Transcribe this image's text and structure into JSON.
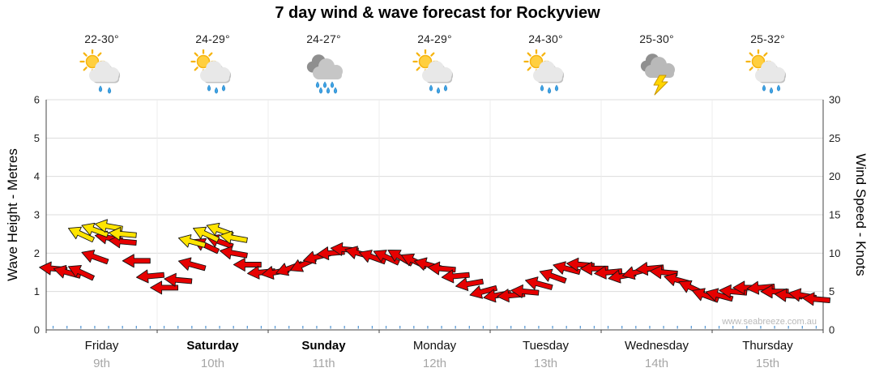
{
  "title": "7 day wind & wave forecast for Rockyview",
  "watermark": "www.seabreeze.com.au",
  "days": [
    {
      "name": "Friday",
      "date": "9th",
      "temp": "22-30°",
      "icon": "sun-shower",
      "drops": 2,
      "bold": false
    },
    {
      "name": "Saturday",
      "date": "10th",
      "temp": "24-29°",
      "icon": "sun-shower",
      "drops": 3,
      "bold": true
    },
    {
      "name": "Sunday",
      "date": "11th",
      "temp": "24-27°",
      "icon": "rain",
      "drops": 6,
      "bold": true
    },
    {
      "name": "Monday",
      "date": "12th",
      "temp": "24-29°",
      "icon": "sun-shower",
      "drops": 3,
      "bold": false
    },
    {
      "name": "Tuesday",
      "date": "13th",
      "temp": "24-30°",
      "icon": "sun-shower",
      "drops": 3,
      "bold": false
    },
    {
      "name": "Wednesday",
      "date": "14th",
      "temp": "25-30°",
      "icon": "storm",
      "drops": 0,
      "bold": false
    },
    {
      "name": "Thursday",
      "date": "15th",
      "temp": "25-32°",
      "icon": "sun-shower",
      "drops": 3,
      "bold": false
    }
  ],
  "axes": {
    "left_label": "Wave Height - Metres",
    "left_ticks": [
      0,
      1,
      2,
      3,
      4,
      5,
      6
    ],
    "right_label": "Wind Speed - Knots",
    "right_ticks": [
      0,
      5,
      10,
      15,
      20,
      25,
      30
    ]
  },
  "chart_data": {
    "type": "line",
    "subtype": "wind-direction-arrow-series",
    "title": "7 day wind & wave forecast for Rockyview",
    "x": {
      "days": [
        "Friday 9th",
        "Saturday 10th",
        "Sunday 11th",
        "Monday 12th",
        "Tuesday 13th",
        "Wednesday 14th",
        "Thursday 15th"
      ],
      "points_per_day": 8
    },
    "y_left": {
      "label": "Wave Height - Metres",
      "range": [
        0,
        6
      ]
    },
    "y_right": {
      "label": "Wind Speed - Knots",
      "range": [
        0,
        30
      ]
    },
    "grid": true,
    "series": [
      {
        "name": "Wind speed (knots)",
        "color": "#e60000",
        "values": [
          8,
          7.5,
          7.5,
          9.5,
          12,
          11.5,
          9,
          7,
          5.5,
          6.5,
          8.5,
          11,
          11.5,
          10,
          8.5,
          7.5,
          7.5,
          8,
          8.5,
          9.5,
          10,
          10.5,
          10,
          9.5,
          9.5,
          9.5,
          9,
          8.5,
          8,
          7,
          6,
          5,
          4.5,
          4.5,
          5,
          6,
          7,
          8,
          8.5,
          8,
          7.5,
          7,
          7.5,
          8,
          7.5,
          6.5,
          5.5,
          4.5,
          4.5,
          5,
          5.5,
          5.5,
          5,
          4.5,
          4.5,
          4
        ]
      }
    ],
    "directions_deg": [
      185,
      195,
      205,
      200,
      190,
      185,
      180,
      175,
      180,
      185,
      195,
      205,
      200,
      190,
      180,
      175,
      170,
      160,
      155,
      165,
      175,
      185,
      195,
      200,
      205,
      210,
      205,
      195,
      185,
      175,
      170,
      165,
      170,
      175,
      185,
      195,
      200,
      195,
      185,
      180,
      175,
      170,
      165,
      175,
      185,
      195,
      205,
      200,
      195,
      185,
      180,
      175,
      180,
      185,
      190,
      185
    ],
    "gusts": {
      "name": "Stronger gusts (knots)",
      "color": "#ffe400",
      "points": [
        {
          "index": 2,
          "knots": 12.5
        },
        {
          "index": 3,
          "knots": 13
        },
        {
          "index": 4,
          "knots": 13.5
        },
        {
          "index": 5,
          "knots": 12.5
        },
        {
          "index": 10,
          "knots": 11.5
        },
        {
          "index": 11,
          "knots": 12.5
        },
        {
          "index": 12,
          "knots": 13
        },
        {
          "index": 13,
          "knots": 12
        }
      ]
    },
    "colors": {
      "arrow_red": "#e60000",
      "arrow_yellow": "#ffe400",
      "grid": "#dcdcdc",
      "day_separator": "#ececec",
      "axis": "#444444",
      "rain_tick_blue": "#5b9bd5"
    }
  }
}
